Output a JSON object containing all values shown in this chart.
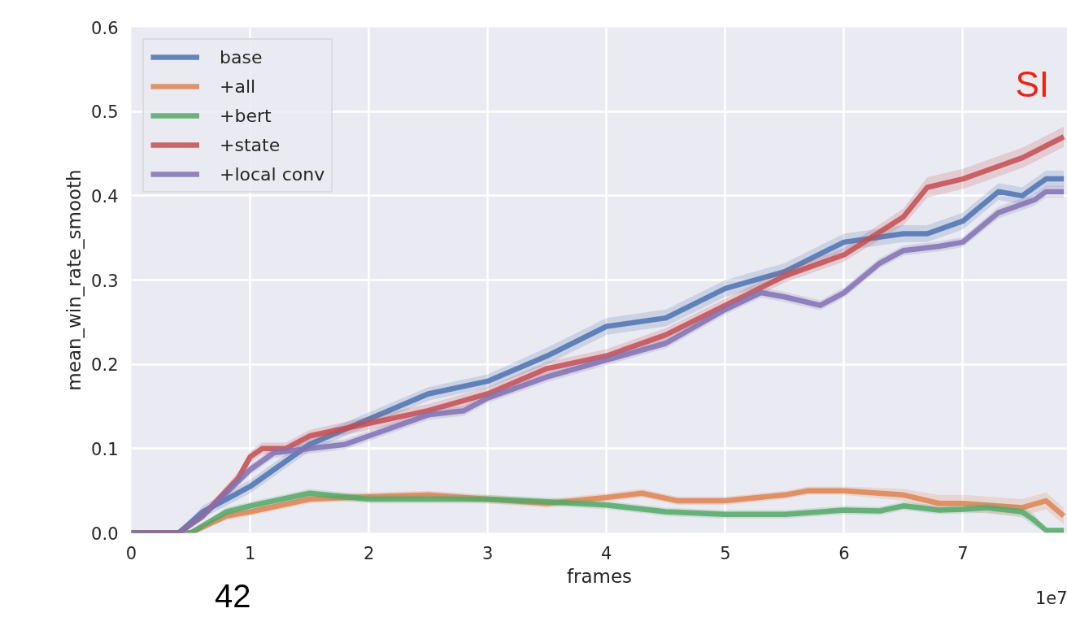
{
  "chart_data": {
    "type": "line",
    "xlabel": "frames",
    "ylabel": "mean_win_rate_smooth",
    "annotations": [
      "SI",
      "42",
      "1e7"
    ],
    "xlim": [
      0,
      7.88
    ],
    "ylim": [
      0,
      0.6
    ],
    "xticks": [
      0,
      1,
      2,
      3,
      4,
      5,
      6,
      7
    ],
    "yticks": [
      {
        "value": 0,
        "label": "0.0"
      },
      0.1,
      0.2,
      0.3,
      0.4,
      0.5,
      0.6
    ],
    "grid": true,
    "legend": "top left",
    "line_style": "solid",
    "marker": "none",
    "series": [
      {
        "name": "base",
        "color": "#4c72b0",
        "x": [
          0,
          0.4,
          0.6,
          0.8,
          1.0,
          1.5,
          2.0,
          2.5,
          3.0,
          3.5,
          4.0,
          4.5,
          5.0,
          5.5,
          6.0,
          6.5,
          6.7,
          7.0,
          7.3,
          7.5,
          7.7,
          7.85
        ],
        "values": [
          0,
          0,
          0.025,
          0.04,
          0.055,
          0.105,
          0.135,
          0.165,
          0.18,
          0.21,
          0.245,
          0.255,
          0.29,
          0.31,
          0.345,
          0.355,
          0.355,
          0.37,
          0.405,
          0.4,
          0.42,
          0.42
        ],
        "lower": [
          0,
          0,
          0.018,
          0.032,
          0.047,
          0.097,
          0.127,
          0.157,
          0.172,
          0.2,
          0.235,
          0.245,
          0.28,
          0.3,
          0.335,
          0.345,
          0.345,
          0.36,
          0.395,
          0.39,
          0.41,
          0.41
        ],
        "upper": [
          0,
          0,
          0.032,
          0.048,
          0.063,
          0.113,
          0.143,
          0.173,
          0.188,
          0.22,
          0.255,
          0.265,
          0.3,
          0.32,
          0.355,
          0.365,
          0.365,
          0.38,
          0.415,
          0.41,
          0.43,
          0.43
        ]
      },
      {
        "name": "+all",
        "color": "#dd8452",
        "x": [
          0,
          0.5,
          0.8,
          1.0,
          1.5,
          2.0,
          2.5,
          3.0,
          3.5,
          4.0,
          4.3,
          4.6,
          5.0,
          5.5,
          5.7,
          6.0,
          6.5,
          6.8,
          7.0,
          7.5,
          7.7,
          7.85
        ],
        "values": [
          0,
          0,
          0.02,
          0.025,
          0.04,
          0.043,
          0.045,
          0.04,
          0.035,
          0.042,
          0.047,
          0.038,
          0.038,
          0.045,
          0.05,
          0.05,
          0.045,
          0.035,
          0.035,
          0.03,
          0.038,
          0.02
        ],
        "lower": [
          0,
          0,
          0.015,
          0.02,
          0.035,
          0.038,
          0.04,
          0.035,
          0.03,
          0.037,
          0.042,
          0.033,
          0.033,
          0.04,
          0.045,
          0.045,
          0.038,
          0.025,
          0.025,
          0.02,
          0.028,
          0.01
        ],
        "upper": [
          0,
          0,
          0.025,
          0.03,
          0.045,
          0.048,
          0.05,
          0.045,
          0.04,
          0.047,
          0.052,
          0.043,
          0.043,
          0.05,
          0.055,
          0.055,
          0.052,
          0.045,
          0.045,
          0.04,
          0.048,
          0.03
        ]
      },
      {
        "name": "+bert",
        "color": "#55a868",
        "x": [
          0,
          0.5,
          0.8,
          1.0,
          1.5,
          2.0,
          2.5,
          3.0,
          3.5,
          4.0,
          4.5,
          5.0,
          5.5,
          6.0,
          6.3,
          6.5,
          6.8,
          7.0,
          7.2,
          7.5,
          7.6,
          7.7,
          7.85
        ],
        "values": [
          0,
          0,
          0.025,
          0.032,
          0.047,
          0.04,
          0.04,
          0.04,
          0.037,
          0.033,
          0.025,
          0.022,
          0.022,
          0.027,
          0.026,
          0.032,
          0.027,
          0.028,
          0.03,
          0.025,
          0.015,
          0.003,
          0.003
        ],
        "lower": [
          0,
          0,
          0.02,
          0.027,
          0.042,
          0.035,
          0.035,
          0.035,
          0.032,
          0.028,
          0.02,
          0.017,
          0.017,
          0.022,
          0.021,
          0.027,
          0.022,
          0.023,
          0.024,
          0.018,
          0.008,
          0.001,
          0.001
        ],
        "upper": [
          0,
          0,
          0.03,
          0.037,
          0.052,
          0.045,
          0.045,
          0.045,
          0.042,
          0.038,
          0.03,
          0.027,
          0.027,
          0.032,
          0.031,
          0.037,
          0.032,
          0.033,
          0.036,
          0.032,
          0.022,
          0.005,
          0.005
        ]
      },
      {
        "name": "+state",
        "color": "#c44e52",
        "x": [
          0,
          0.4,
          0.6,
          0.9,
          1.0,
          1.1,
          1.3,
          1.5,
          2.0,
          2.5,
          3.0,
          3.5,
          4.0,
          4.5,
          5.0,
          5.5,
          6.0,
          6.5,
          6.7,
          7.0,
          7.2,
          7.5,
          7.85
        ],
        "values": [
          0,
          0,
          0.02,
          0.065,
          0.09,
          0.1,
          0.1,
          0.115,
          0.13,
          0.145,
          0.165,
          0.195,
          0.21,
          0.235,
          0.27,
          0.305,
          0.33,
          0.375,
          0.41,
          0.42,
          0.43,
          0.445,
          0.47
        ],
        "lower": [
          0,
          0,
          0.015,
          0.058,
          0.083,
          0.093,
          0.093,
          0.108,
          0.122,
          0.137,
          0.157,
          0.187,
          0.202,
          0.227,
          0.262,
          0.297,
          0.322,
          0.365,
          0.398,
          0.408,
          0.418,
          0.433,
          0.458
        ],
        "upper": [
          0,
          0,
          0.025,
          0.072,
          0.097,
          0.107,
          0.107,
          0.122,
          0.138,
          0.153,
          0.173,
          0.203,
          0.218,
          0.243,
          0.278,
          0.313,
          0.338,
          0.385,
          0.422,
          0.432,
          0.442,
          0.457,
          0.482
        ]
      },
      {
        "name": "+local conv",
        "color": "#8172b3",
        "x": [
          0,
          0.4,
          0.6,
          1.0,
          1.2,
          1.5,
          1.8,
          2.0,
          2.5,
          2.8,
          3.0,
          3.5,
          4.0,
          4.5,
          5.0,
          5.3,
          5.5,
          5.8,
          6.0,
          6.3,
          6.5,
          6.8,
          7.0,
          7.3,
          7.6,
          7.7,
          7.85
        ],
        "values": [
          0,
          0,
          0.02,
          0.075,
          0.095,
          0.1,
          0.105,
          0.115,
          0.14,
          0.145,
          0.16,
          0.185,
          0.205,
          0.225,
          0.265,
          0.285,
          0.28,
          0.27,
          0.285,
          0.32,
          0.335,
          0.34,
          0.345,
          0.38,
          0.395,
          0.405,
          0.405
        ],
        "lower": [
          0,
          0,
          0.015,
          0.069,
          0.089,
          0.094,
          0.099,
          0.109,
          0.134,
          0.139,
          0.154,
          0.179,
          0.199,
          0.219,
          0.259,
          0.279,
          0.274,
          0.264,
          0.279,
          0.314,
          0.329,
          0.334,
          0.339,
          0.373,
          0.388,
          0.398,
          0.398
        ],
        "upper": [
          0,
          0,
          0.025,
          0.081,
          0.101,
          0.106,
          0.111,
          0.121,
          0.146,
          0.151,
          0.166,
          0.191,
          0.211,
          0.231,
          0.271,
          0.291,
          0.286,
          0.276,
          0.291,
          0.326,
          0.341,
          0.346,
          0.351,
          0.387,
          0.402,
          0.412,
          0.412
        ]
      }
    ]
  }
}
